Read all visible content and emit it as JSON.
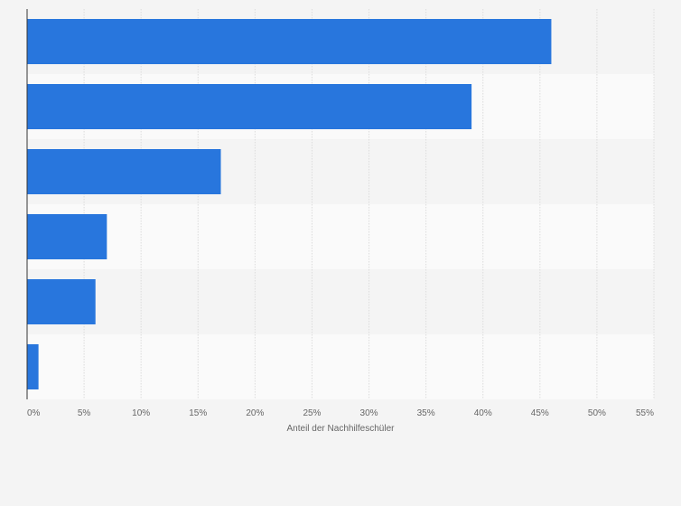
{
  "chart_data": {
    "type": "bar",
    "orientation": "horizontal",
    "categories": [
      "",
      "",
      "",
      "",
      "",
      ""
    ],
    "values": [
      46,
      39,
      17,
      7,
      6,
      1
    ],
    "title": "",
    "xlabel": "Anteil der Nachhilfeschüler",
    "ylabel": "",
    "xlim": [
      0,
      55
    ],
    "xticks": [
      0,
      5,
      10,
      15,
      20,
      25,
      30,
      35,
      40,
      45,
      50,
      55
    ],
    "xtick_labels": [
      "0%",
      "5%",
      "10%",
      "15%",
      "20%",
      "25%",
      "30%",
      "35%",
      "40%",
      "45%",
      "50%",
      "55%"
    ],
    "grid": true,
    "legend": "none",
    "bar_color": "#2876dd",
    "band_colors": [
      "#f4f4f4",
      "#fafafa"
    ],
    "grid_color": "#dcdcdc",
    "axis_color": "#333333"
  }
}
